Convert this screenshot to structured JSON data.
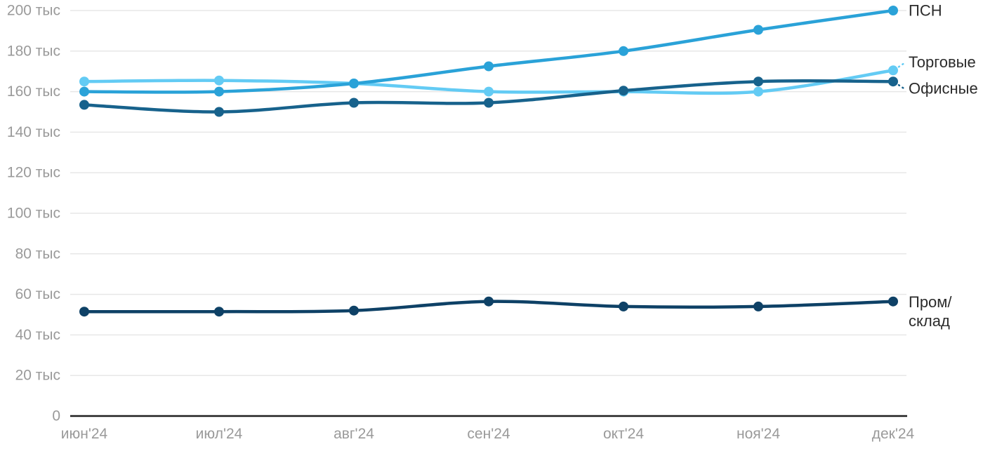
{
  "chart_data": {
    "type": "line",
    "title": "",
    "x_categories": [
      "июн'24",
      "июл'24",
      "авг'24",
      "сен'24",
      "окт'24",
      "ноя'24",
      "дек'24"
    ],
    "y_unit": "тыс",
    "ylim": [
      0,
      200
    ],
    "y_tick_step": 20,
    "grid": "horizontal",
    "legend_position": "direct-labels-right",
    "y_ticks": [
      {
        "value": 0,
        "label": "0"
      },
      {
        "value": 20,
        "label": "20 тыс"
      },
      {
        "value": 40,
        "label": "40 тыс"
      },
      {
        "value": 60,
        "label": "60 тыс"
      },
      {
        "value": 80,
        "label": "80 тыс"
      },
      {
        "value": 100,
        "label": "100 тыс"
      },
      {
        "value": 120,
        "label": "120 тыс"
      },
      {
        "value": 140,
        "label": "140 тыс"
      },
      {
        "value": 160,
        "label": "160 тыс"
      },
      {
        "value": 180,
        "label": "180 тыс"
      },
      {
        "value": 200,
        "label": "200 тыс"
      }
    ],
    "series": [
      {
        "id": "torgovye",
        "name": "Торговые",
        "color": "#63CBF4",
        "values": [
          165,
          165.5,
          164,
          160,
          160,
          160,
          170.5
        ],
        "label_lines": [
          "Торговые"
        ],
        "label_offset_y": -12,
        "leader": "up"
      },
      {
        "id": "psn",
        "name": "ПСН",
        "color": "#2AA2D8",
        "values": [
          160,
          160,
          164,
          172.5,
          180,
          190.5,
          200
        ],
        "label_lines": [
          "ПСН"
        ],
        "label_offset_y": 0,
        "leader": "none"
      },
      {
        "id": "ofisnye",
        "name": "Офисные",
        "color": "#17628C",
        "values": [
          153.5,
          150,
          154.5,
          154.5,
          160.5,
          165,
          165
        ],
        "label_lines": [
          "Офисные"
        ],
        "label_offset_y": 10,
        "leader": "down"
      },
      {
        "id": "prom-sklad",
        "name": "Пром/склад",
        "color": "#0E4166",
        "values": [
          51.5,
          51.5,
          52,
          56.5,
          54,
          54,
          56.5
        ],
        "label_lines": [
          "Пром/",
          "склад"
        ],
        "label_offset_y": 1,
        "leader": "none"
      }
    ],
    "colors": {
      "grid": "#E7E7E7",
      "axis": "#1F1F1F",
      "tick_text": "#9A9A9A",
      "label_text": "#2B2B2B",
      "background": "#FFFFFF"
    }
  }
}
